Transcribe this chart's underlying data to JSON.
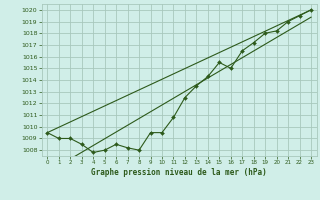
{
  "title": "Graphe pression niveau de la mer (hPa)",
  "bg_color": "#d0eee8",
  "grid_color": "#a8c8bc",
  "line_color": "#2d5a1b",
  "hours": [
    0,
    1,
    2,
    3,
    4,
    5,
    6,
    7,
    8,
    9,
    10,
    11,
    12,
    13,
    14,
    15,
    16,
    17,
    18,
    19,
    20,
    21,
    22,
    23
  ],
  "pressure": [
    1009.5,
    1009.0,
    1009.0,
    1008.5,
    1007.8,
    1008.0,
    1008.5,
    1008.2,
    1008.0,
    1009.5,
    1009.5,
    1010.8,
    1012.5,
    1013.5,
    1014.3,
    1015.5,
    1015.0,
    1016.5,
    1017.2,
    1018.0,
    1018.2,
    1019.0,
    1019.5,
    1020.0
  ],
  "ylim": [
    1007.5,
    1020.5
  ],
  "yticks": [
    1008,
    1009,
    1010,
    1011,
    1012,
    1013,
    1014,
    1015,
    1016,
    1017,
    1018,
    1019,
    1020
  ],
  "figsize": [
    3.2,
    2.0
  ],
  "dpi": 100
}
